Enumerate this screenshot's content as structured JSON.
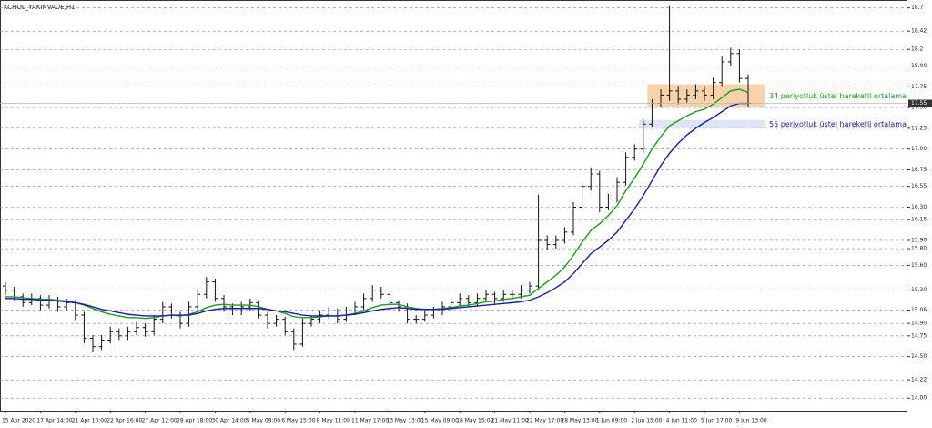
{
  "chart_data": {
    "type": "ohlc",
    "title": "KCHOL_YAKINVADE,H1",
    "categories": [
      "15 Apr 2020",
      null,
      null,
      null,
      "17 Apr 14:00",
      null,
      null,
      null,
      "21 Apr 10:00",
      null,
      null,
      null,
      "22 Apr 16:00",
      null,
      null,
      null,
      "27 Apr 12:00",
      null,
      null,
      null,
      "28 Apr 18:00",
      null,
      null,
      null,
      "30 Apr 14:00",
      null,
      null,
      null,
      "5 May 09:00",
      null,
      null,
      null,
      "6 May 15:00",
      null,
      null,
      null,
      "8 May 11:00",
      null,
      null,
      null,
      "11 May 17:00",
      null,
      null,
      null,
      "13 May 13:00",
      null,
      null,
      null,
      "15 May 09:00",
      null,
      null,
      null,
      "18 May 15:00",
      null,
      null,
      null,
      "21 May 11:00",
      null,
      null,
      null,
      "22 May 17:00",
      null,
      null,
      null,
      "28 May 13:00",
      null,
      null,
      null,
      "1 Jun 09:00",
      null,
      null,
      null,
      "2 Jun 15:00",
      null,
      null,
      null,
      "4 Jun 11:00",
      null,
      null,
      null,
      "5 Jun 17:00",
      null,
      null,
      null,
      "9 Jun 13:00",
      null
    ],
    "ohlc": [
      [
        15.35,
        15.4,
        15.24,
        15.3
      ],
      [
        15.3,
        15.34,
        15.18,
        15.22
      ],
      [
        15.22,
        15.26,
        15.1,
        15.15
      ],
      [
        15.15,
        15.26,
        15.12,
        15.2
      ],
      [
        15.2,
        15.24,
        15.06,
        15.12
      ],
      [
        15.12,
        15.24,
        15.08,
        15.18
      ],
      [
        15.18,
        15.22,
        15.04,
        15.1
      ],
      [
        15.1,
        15.2,
        15.06,
        15.15
      ],
      [
        15.15,
        15.18,
        14.94,
        15.0
      ],
      [
        15.0,
        15.04,
        14.66,
        14.72
      ],
      [
        14.72,
        14.76,
        14.56,
        14.62
      ],
      [
        14.62,
        14.76,
        14.58,
        14.7
      ],
      [
        14.7,
        14.86,
        14.66,
        14.8
      ],
      [
        14.8,
        14.84,
        14.7,
        14.75
      ],
      [
        14.75,
        14.86,
        14.7,
        14.8
      ],
      [
        14.8,
        14.92,
        14.76,
        14.85
      ],
      [
        14.85,
        14.9,
        14.74,
        14.8
      ],
      [
        14.8,
        15.0,
        14.76,
        14.95
      ],
      [
        14.95,
        15.16,
        14.9,
        15.1
      ],
      [
        15.1,
        15.14,
        14.96,
        15.0
      ],
      [
        15.0,
        15.04,
        14.84,
        14.9
      ],
      [
        14.9,
        15.16,
        14.86,
        15.1
      ],
      [
        15.1,
        15.3,
        15.06,
        15.25
      ],
      [
        15.25,
        15.46,
        15.2,
        15.4
      ],
      [
        15.4,
        15.44,
        15.16,
        15.2
      ],
      [
        15.2,
        15.24,
        15.04,
        15.1
      ],
      [
        15.1,
        15.14,
        15.0,
        15.05
      ],
      [
        15.05,
        15.16,
        15.0,
        15.1
      ],
      [
        15.1,
        15.2,
        15.06,
        15.15
      ],
      [
        15.15,
        15.18,
        14.96,
        15.0
      ],
      [
        15.0,
        15.04,
        14.84,
        14.9
      ],
      [
        14.9,
        15.0,
        14.86,
        14.95
      ],
      [
        14.95,
        14.98,
        14.76,
        14.8
      ],
      [
        14.8,
        14.84,
        14.58,
        14.65
      ],
      [
        14.65,
        14.96,
        14.62,
        14.9
      ],
      [
        14.9,
        15.0,
        14.86,
        14.95
      ],
      [
        14.95,
        15.06,
        14.9,
        15.0
      ],
      [
        15.0,
        15.1,
        14.96,
        15.05
      ],
      [
        15.05,
        15.08,
        14.9,
        14.95
      ],
      [
        14.95,
        15.1,
        14.92,
        15.05
      ],
      [
        15.05,
        15.16,
        15.0,
        15.1
      ],
      [
        15.1,
        15.26,
        15.06,
        15.2
      ],
      [
        15.2,
        15.36,
        15.16,
        15.3
      ],
      [
        15.3,
        15.34,
        15.2,
        15.25
      ],
      [
        15.25,
        15.28,
        15.1,
        15.15
      ],
      [
        15.15,
        15.18,
        15.04,
        15.1
      ],
      [
        15.1,
        15.14,
        14.9,
        14.95
      ],
      [
        14.95,
        15.0,
        14.9,
        14.95
      ],
      [
        14.95,
        15.06,
        14.92,
        15.0
      ],
      [
        15.0,
        15.1,
        14.96,
        15.05
      ],
      [
        15.05,
        15.16,
        15.0,
        15.1
      ],
      [
        15.1,
        15.2,
        15.06,
        15.15
      ],
      [
        15.15,
        15.26,
        15.1,
        15.2
      ],
      [
        15.2,
        15.24,
        15.1,
        15.15
      ],
      [
        15.15,
        15.26,
        15.1,
        15.2
      ],
      [
        15.2,
        15.3,
        15.16,
        15.25
      ],
      [
        15.25,
        15.28,
        15.14,
        15.2
      ],
      [
        15.2,
        15.3,
        15.16,
        15.25
      ],
      [
        15.25,
        15.3,
        15.2,
        15.25
      ],
      [
        15.25,
        15.36,
        15.2,
        15.3
      ],
      [
        15.3,
        15.4,
        15.26,
        15.35
      ],
      [
        15.35,
        16.45,
        15.3,
        15.9
      ],
      [
        15.9,
        15.96,
        15.78,
        15.85
      ],
      [
        15.85,
        15.96,
        15.8,
        15.9
      ],
      [
        15.9,
        16.06,
        15.86,
        16.0
      ],
      [
        16.0,
        16.36,
        15.96,
        16.3
      ],
      [
        16.3,
        16.6,
        16.26,
        16.55
      ],
      [
        16.55,
        16.78,
        16.5,
        16.7
      ],
      [
        16.7,
        16.74,
        16.24,
        16.3
      ],
      [
        16.3,
        16.46,
        16.26,
        16.4
      ],
      [
        16.4,
        16.66,
        16.36,
        16.6
      ],
      [
        16.6,
        16.96,
        16.56,
        16.9
      ],
      [
        16.9,
        17.06,
        16.86,
        17.0
      ],
      [
        17.0,
        17.36,
        16.96,
        17.3
      ],
      [
        17.3,
        17.6,
        17.26,
        17.55
      ],
      [
        17.55,
        17.72,
        17.5,
        17.65
      ],
      [
        17.65,
        18.72,
        17.58,
        17.7
      ],
      [
        17.7,
        17.76,
        17.54,
        17.6
      ],
      [
        17.6,
        17.72,
        17.56,
        17.65
      ],
      [
        17.65,
        17.78,
        17.6,
        17.7
      ],
      [
        17.7,
        17.76,
        17.58,
        17.65
      ],
      [
        17.65,
        17.86,
        17.6,
        17.8
      ],
      [
        17.8,
        18.12,
        17.76,
        18.05
      ],
      [
        18.05,
        18.22,
        18.0,
        18.15
      ],
      [
        18.15,
        18.2,
        17.8,
        17.85
      ],
      [
        17.85,
        17.9,
        17.5,
        17.55
      ]
    ],
    "series": [
      {
        "color": "#1e9b1e",
        "values": [
          15.22,
          15.22,
          15.21,
          15.2,
          15.19,
          15.19,
          15.18,
          15.17,
          15.15,
          15.12,
          15.08,
          15.04,
          15.01,
          14.99,
          14.97,
          14.97,
          14.96,
          14.97,
          14.99,
          15.0,
          14.99,
          15.01,
          15.04,
          15.09,
          15.12,
          15.13,
          15.12,
          15.12,
          15.12,
          15.1,
          15.07,
          15.05,
          15.02,
          14.98,
          14.97,
          14.97,
          14.98,
          14.99,
          14.99,
          15.0,
          15.02,
          15.05,
          15.09,
          15.12,
          15.13,
          15.13,
          15.1,
          15.08,
          15.07,
          15.07,
          15.08,
          15.09,
          15.11,
          15.12,
          15.14,
          15.16,
          15.17,
          15.19,
          15.2,
          15.22,
          15.24,
          15.32,
          15.4,
          15.48,
          15.58,
          15.72,
          15.88,
          16.02,
          16.1,
          16.2,
          16.32,
          16.5,
          16.65,
          16.82,
          17.0,
          17.15,
          17.28,
          17.34,
          17.4,
          17.45,
          17.48,
          17.54,
          17.62,
          17.7,
          17.72,
          17.68
        ]
      },
      {
        "color": "#1c1ca8",
        "values": [
          15.2,
          15.2,
          15.19,
          15.19,
          15.18,
          15.18,
          15.17,
          15.16,
          15.15,
          15.13,
          15.1,
          15.07,
          15.05,
          15.03,
          15.01,
          15.0,
          14.99,
          14.99,
          14.99,
          15.0,
          15.0,
          15.0,
          15.02,
          15.05,
          15.07,
          15.08,
          15.08,
          15.08,
          15.08,
          15.08,
          15.07,
          15.05,
          15.04,
          15.02,
          15.0,
          14.99,
          14.99,
          14.99,
          14.99,
          15.0,
          15.01,
          15.03,
          15.05,
          15.07,
          15.08,
          15.09,
          15.08,
          15.07,
          15.07,
          15.07,
          15.07,
          15.08,
          15.09,
          15.1,
          15.11,
          15.12,
          15.13,
          15.14,
          15.15,
          15.16,
          15.18,
          15.22,
          15.27,
          15.33,
          15.4,
          15.5,
          15.62,
          15.74,
          15.82,
          15.9,
          16.0,
          16.14,
          16.28,
          16.44,
          16.62,
          16.8,
          16.95,
          17.07,
          17.17,
          17.25,
          17.32,
          17.38,
          17.45,
          17.52,
          17.55,
          17.55
        ]
      }
    ],
    "zones": [
      {
        "from": 74,
        "low": 17.5,
        "high": 17.78,
        "color": "#f8d2aa",
        "label": "34 periyotluk üstel hareketli ortalama"
      },
      {
        "from": 73,
        "low": 17.25,
        "high": 17.35,
        "color": "#dfe4f8",
        "label": "55 periyotluk üstel hareketli ortalama"
      }
    ],
    "ylim": [
      13.86,
      18.74
    ],
    "yticks": [
      18.7,
      18.42,
      18.2,
      {
        "value": 18,
        "label": "18.00"
      },
      17.75,
      {
        "value": 17.5,
        "label": "17.50"
      },
      17.25,
      {
        "value": 17,
        "label": "17.00"
      },
      16.75,
      16.55,
      {
        "value": 16.3,
        "label": "16.30"
      },
      16.15,
      {
        "value": 15.9,
        "label": "15.90"
      },
      {
        "value": 15.8,
        "label": "15.80"
      },
      {
        "value": 15.6,
        "label": "15.60"
      },
      {
        "value": 15.3,
        "label": "15.30"
      },
      15.06,
      {
        "value": 14.9,
        "label": "14.90"
      },
      14.75,
      {
        "value": 14.5,
        "label": "14.50"
      },
      14.22,
      {
        "value": 14,
        "label": "14.00"
      }
    ],
    "grid": true
  }
}
